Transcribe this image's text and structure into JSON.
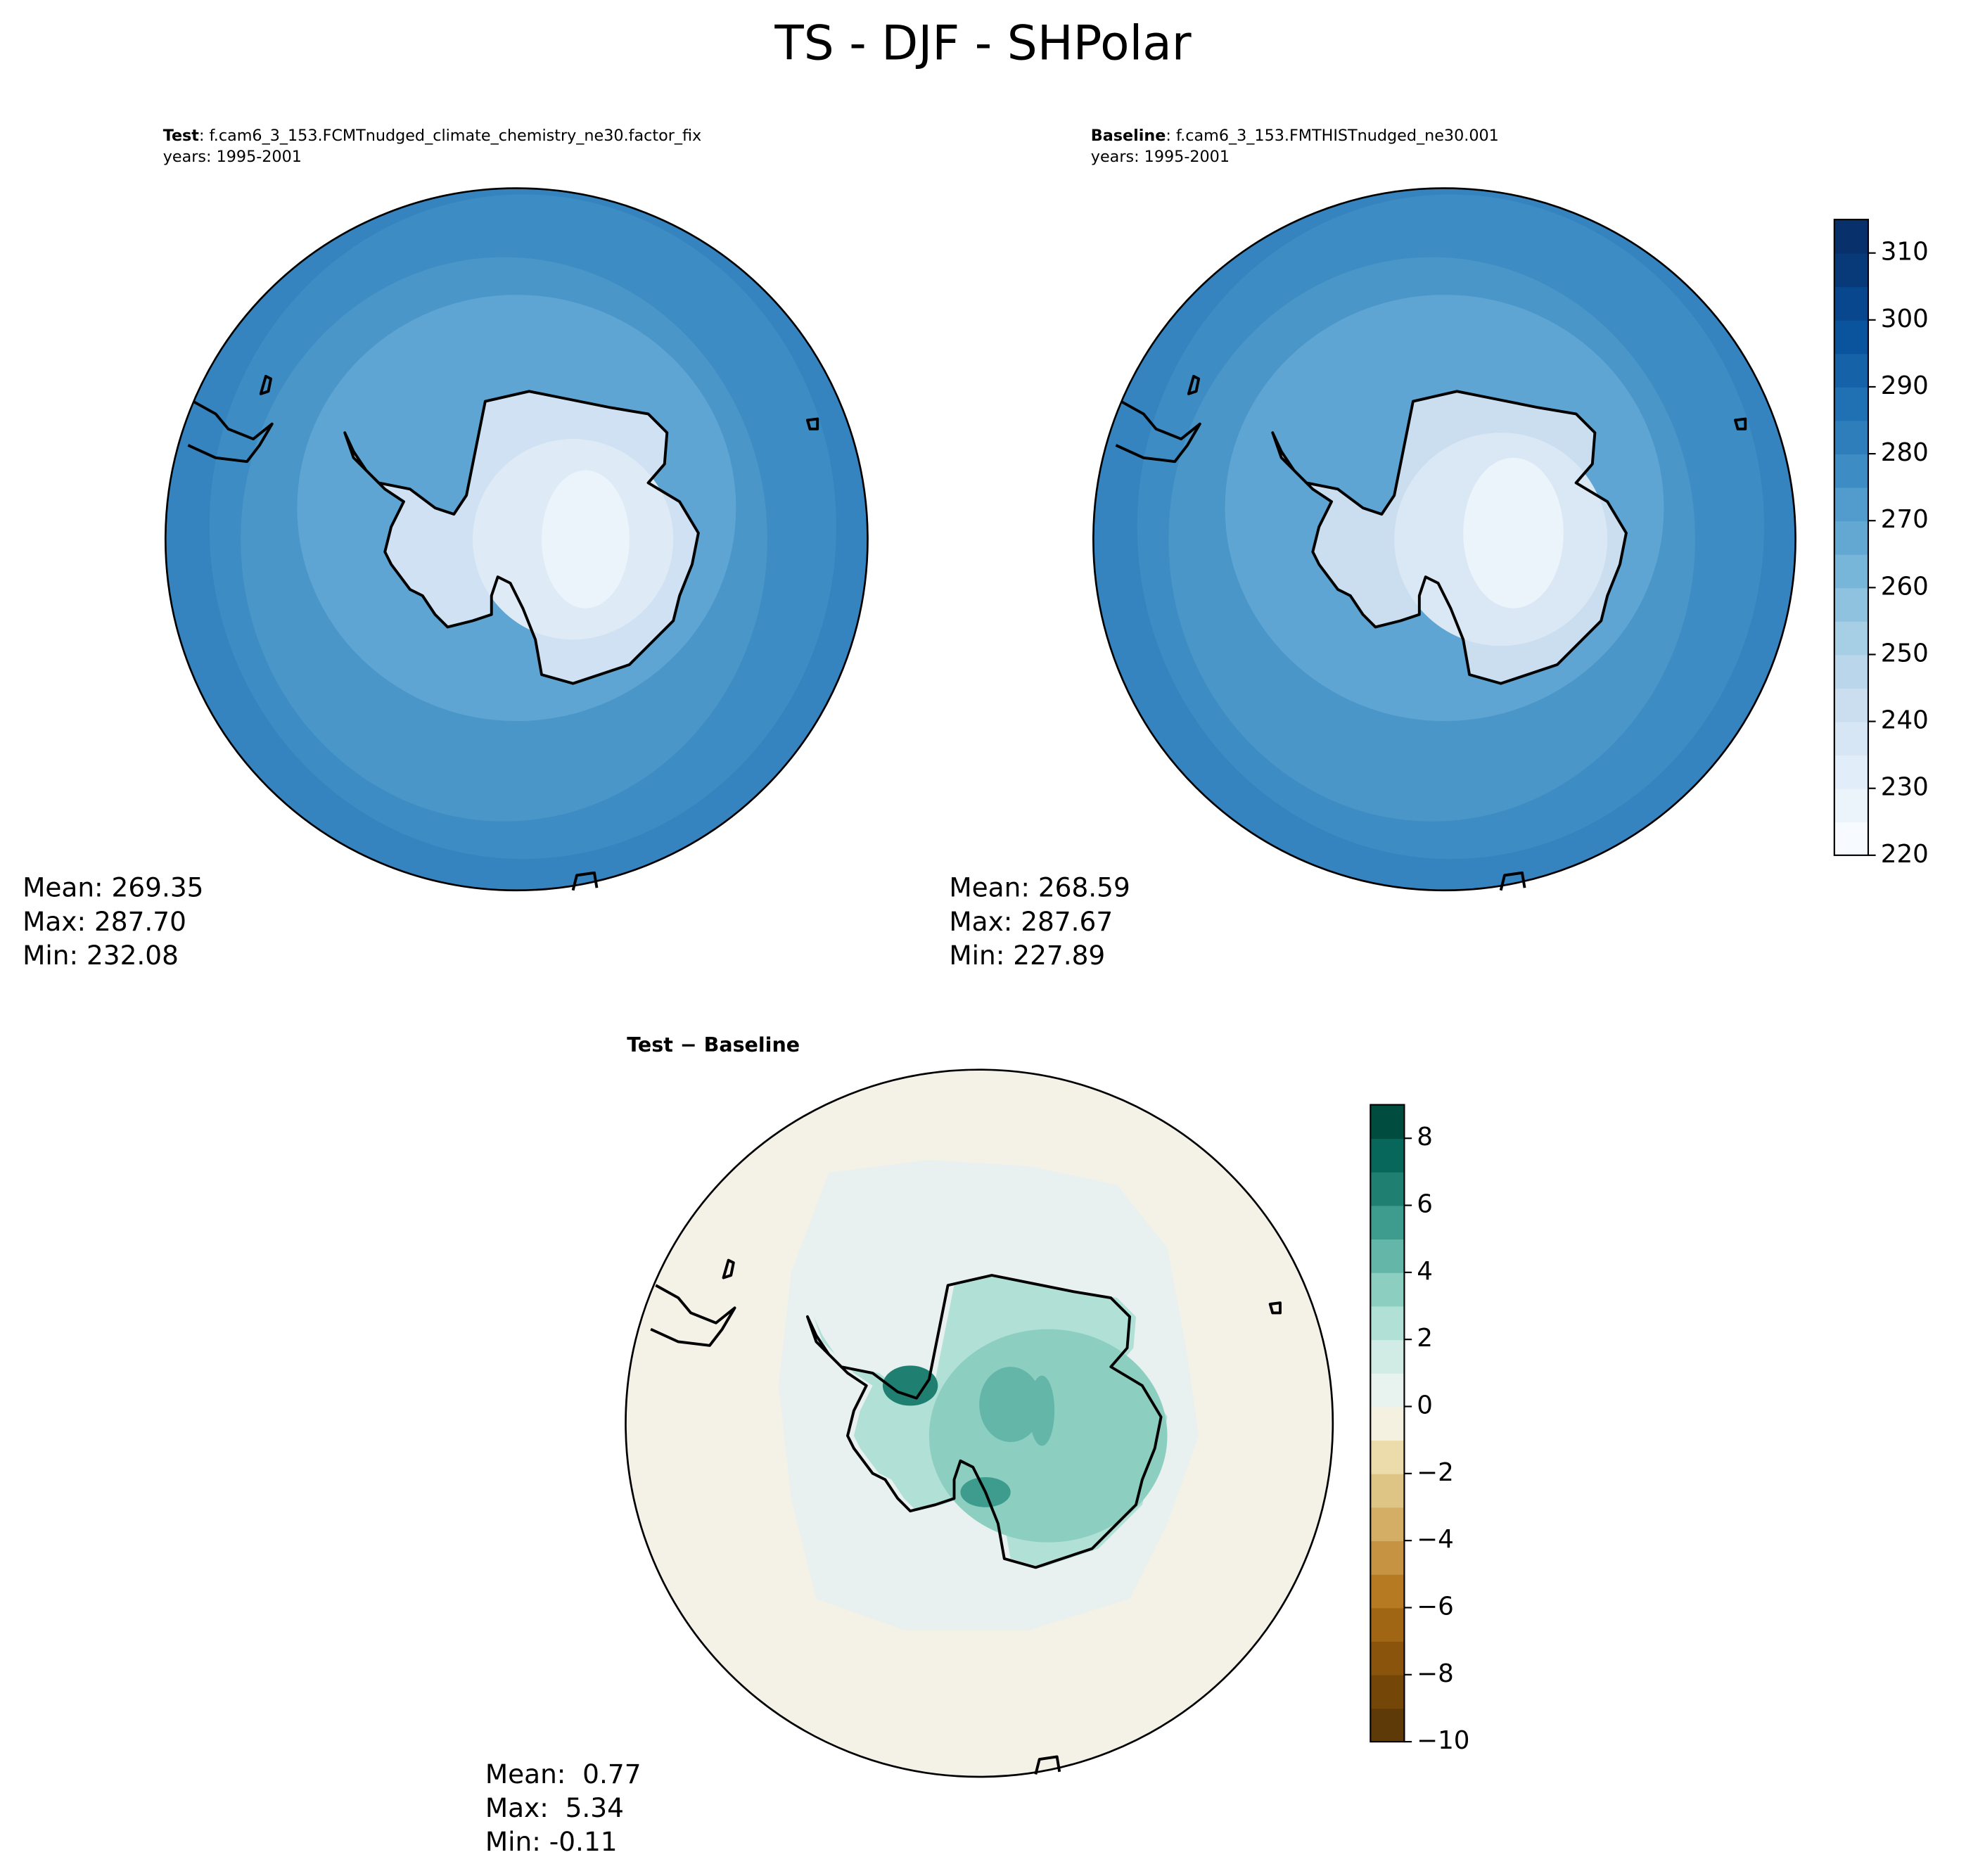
{
  "title": "TS - DJF - SHPolar",
  "panels": [
    {
      "label": "Test",
      "case": ": f.cam6_3_153.FCMTnudged_climate_chemistry_ne30.factor_fix",
      "years": "years: 1995-2001",
      "stats": [
        "Mean: 269.35",
        "Max: 287.70",
        "Min: 232.08"
      ]
    },
    {
      "label": "Baseline",
      "case": ": f.cam6_3_153.FMTHISTnudged_ne30.001",
      "years": "years: 1995-2001",
      "stats": [
        "Mean: 268.59",
        "Max: 287.67",
        "Min: 227.89"
      ]
    },
    {
      "label": "Test − Baseline",
      "stats": [
        "Mean:  0.77",
        "Max:  5.34",
        "Min: -0.11"
      ]
    }
  ],
  "colorbars": [
    {
      "lim": [
        220,
        315
      ],
      "levels": [
        220,
        225,
        230,
        235,
        240,
        245,
        250,
        255,
        260,
        265,
        270,
        275,
        280,
        285,
        290,
        295,
        300,
        305,
        310,
        315
      ],
      "colors": [
        "#f7fbff",
        "#ebf3fb",
        "#e1edf8",
        "#d7e6f5",
        "#cadef0",
        "#bad6eb",
        "#a6cee4",
        "#8fc2de",
        "#77b5d9",
        "#63a8d3",
        "#519ccc",
        "#3d8dc4",
        "#2f7ebc",
        "#2070b4",
        "#1562a9",
        "#0a549e",
        "#08478d",
        "#083a7a",
        "#08306b"
      ],
      "ticks": [
        220,
        230,
        240,
        250,
        260,
        270,
        280,
        290,
        300,
        310
      ]
    },
    {
      "lim": [
        -10,
        9
      ],
      "levels": [
        -10,
        -9,
        -8,
        -7,
        -6,
        -5,
        -4,
        -3,
        -2,
        -1,
        0,
        1,
        2,
        3,
        4,
        5,
        6,
        7,
        8,
        9
      ],
      "colors": [
        "#5e3a08",
        "#744709",
        "#8a540c",
        "#a16614",
        "#b67a22",
        "#c69343",
        "#d3ae64",
        "#dfc585",
        "#ecdcac",
        "#f5f1e1",
        "#e8f2ef",
        "#d1ebe5",
        "#b0e0d6",
        "#8ccfc1",
        "#64b7a8",
        "#3e9c8f",
        "#1f8072",
        "#08675b",
        "#004d40"
      ],
      "ticks": [
        {
          "value": -10,
          "label": "−10"
        },
        {
          "value": -8,
          "label": "−8"
        },
        {
          "value": -6,
          "label": "−6"
        },
        {
          "value": -4,
          "label": "−4"
        },
        {
          "value": -2,
          "label": "−2"
        },
        0,
        2,
        4,
        6,
        8
      ]
    }
  ]
}
